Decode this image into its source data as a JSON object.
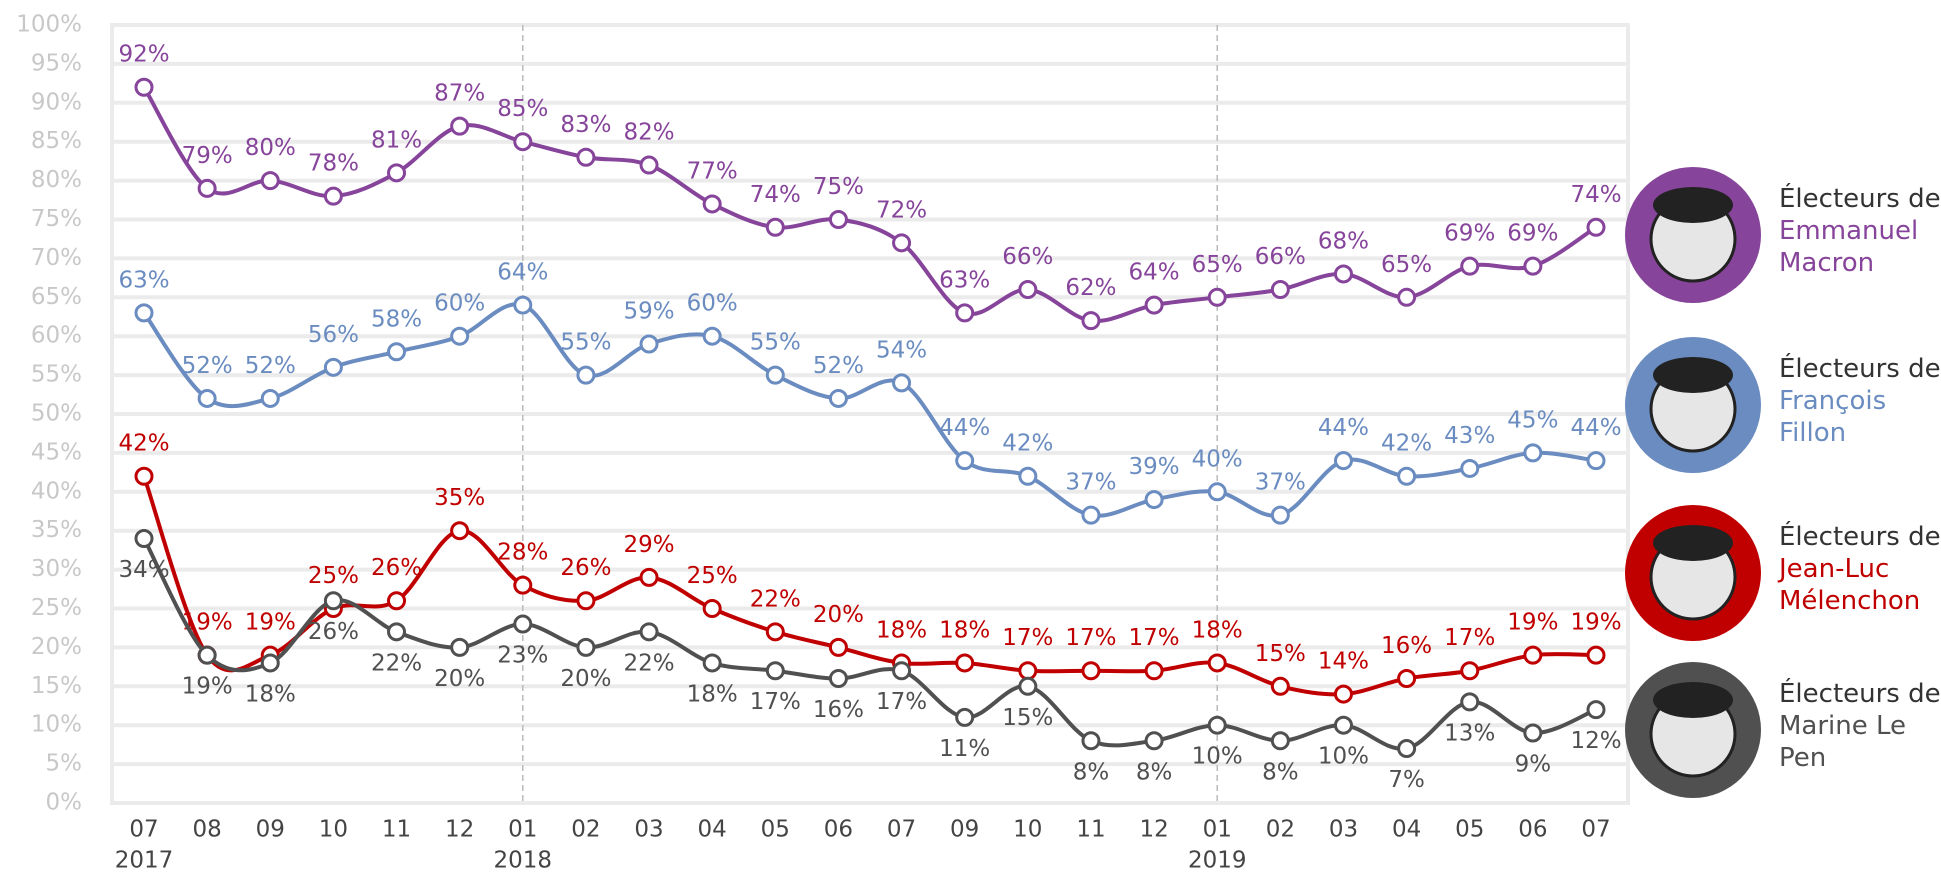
{
  "chart_data": {
    "type": "line",
    "categories": [
      "07",
      "08",
      "09",
      "10",
      "11",
      "12",
      "01",
      "02",
      "03",
      "04",
      "05",
      "06",
      "07",
      "09",
      "10",
      "11",
      "12",
      "01",
      "02",
      "03",
      "04",
      "05",
      "06",
      "07"
    ],
    "category_years": [
      "2017",
      null,
      null,
      null,
      null,
      null,
      "2018",
      null,
      null,
      null,
      null,
      null,
      null,
      null,
      null,
      null,
      null,
      "2019",
      null,
      null,
      null,
      null,
      null,
      null
    ],
    "legend_prefix": "Électeurs de",
    "series": [
      {
        "name": "Emmanuel Macron",
        "color": "#86449a",
        "values": [
          92,
          79,
          80,
          78,
          81,
          87,
          85,
          83,
          82,
          77,
          74,
          75,
          72,
          63,
          66,
          62,
          64,
          65,
          66,
          68,
          65,
          69,
          69,
          74
        ],
        "value_labels": [
          "92%",
          "79%",
          "80%",
          "78%",
          "81%",
          "87%",
          "85%",
          "83%",
          "82%",
          "77%",
          "74%",
          "75%",
          "72%",
          "63%",
          "66%",
          "62%",
          "64%",
          "65%",
          "66%",
          "68%",
          "65%",
          "69%",
          "69%",
          "74%"
        ]
      },
      {
        "name": "François Fillon",
        "color": "#6a8cc0",
        "values": [
          63,
          52,
          52,
          56,
          58,
          60,
          64,
          55,
          59,
          60,
          55,
          52,
          54,
          44,
          42,
          37,
          39,
          40,
          37,
          44,
          42,
          43,
          45,
          44
        ],
        "value_labels": [
          "63%",
          "52%",
          "52%",
          "56%",
          "58%",
          "60%",
          "64%",
          "55%",
          "59%",
          "60%",
          "55%",
          "52%",
          "54%",
          "44%",
          "42%",
          "37%",
          "39%",
          "40%",
          "37%",
          "44%",
          "42%",
          "43%",
          "45%",
          "44%"
        ]
      },
      {
        "name": "Jean-Luc Mélenchon",
        "color": "#c00000",
        "values": [
          42,
          19,
          19,
          25,
          26,
          35,
          28,
          26,
          29,
          25,
          22,
          20,
          18,
          18,
          17,
          17,
          17,
          18,
          15,
          14,
          16,
          17,
          19,
          19
        ],
        "value_labels": [
          "42%",
          "19%",
          "19%",
          "25%",
          "26%",
          "35%",
          "28%",
          "26%",
          "29%",
          "25%",
          "22%",
          "20%",
          "18%",
          "18%",
          "17%",
          "17%",
          "17%",
          "18%",
          "15%",
          "14%",
          "16%",
          "17%",
          "19%",
          "19%"
        ]
      },
      {
        "name": "Marine Le Pen",
        "color": "#505050",
        "values": [
          34,
          19,
          18,
          26,
          22,
          20,
          23,
          20,
          22,
          18,
          17,
          16,
          17,
          11,
          15,
          8,
          8,
          10,
          8,
          10,
          7,
          13,
          9,
          12
        ],
        "value_labels": [
          "34%",
          "19%",
          "18%",
          "26%",
          "22%",
          "20%",
          "23%",
          "20%",
          "22%",
          "18%",
          "17%",
          "16%",
          "17%",
          "11%",
          "15%",
          "8%",
          "8%",
          "10%",
          "8%",
          "10%",
          "7%",
          "13%",
          "9%",
          "12%"
        ]
      }
    ],
    "ylim": [
      0,
      100
    ],
    "yticks": [
      {
        "value": 0,
        "label": "0%"
      },
      {
        "value": 5,
        "label": "5%"
      },
      {
        "value": 10,
        "label": "10%"
      },
      {
        "value": 15,
        "label": "15%"
      },
      {
        "value": 20,
        "label": "20%"
      },
      {
        "value": 25,
        "label": "25%"
      },
      {
        "value": 30,
        "label": "30%"
      },
      {
        "value": 35,
        "label": "35%"
      },
      {
        "value": 40,
        "label": "40%"
      },
      {
        "value": 45,
        "label": "45%"
      },
      {
        "value": 50,
        "label": "50%"
      },
      {
        "value": 55,
        "label": "55%"
      },
      {
        "value": 60,
        "label": "60%"
      },
      {
        "value": 65,
        "label": "65%"
      },
      {
        "value": 70,
        "label": "70%"
      },
      {
        "value": 75,
        "label": "75%"
      },
      {
        "value": 80,
        "label": "80%"
      },
      {
        "value": 85,
        "label": "85%"
      },
      {
        "value": 90,
        "label": "90%"
      },
      {
        "value": 95,
        "label": "95%"
      },
      {
        "value": 100,
        "label": "100%"
      }
    ],
    "grid": true,
    "legend": "right"
  }
}
